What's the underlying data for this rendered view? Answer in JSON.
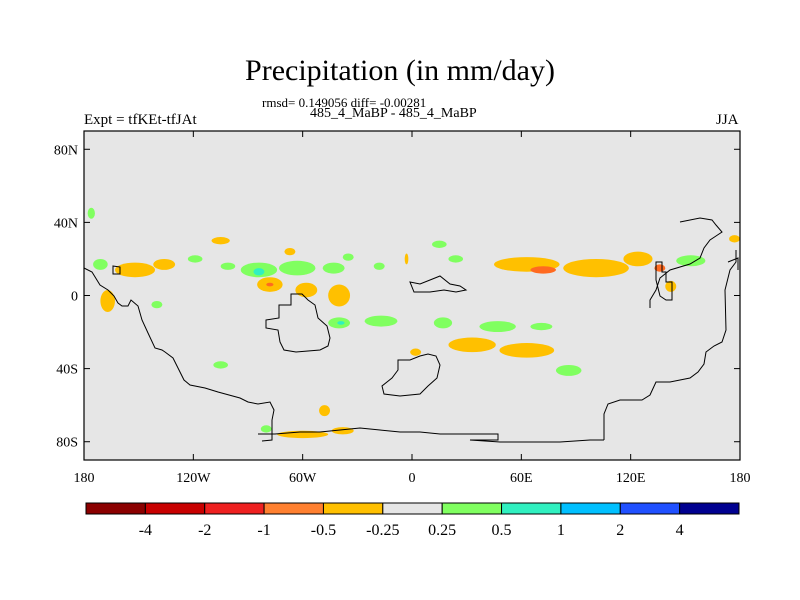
{
  "title": "Precipitation (in mm/day)",
  "stats_line": "rmsd= 0.149056 diff= -0.00281",
  "subtitle": "485_4_MaBP - 485_4_MaBP",
  "experiment_label": "Expt = tfKEt-tfJAt",
  "season": "JJA",
  "map": {
    "projection": "cylindrical-equidistant",
    "lon_range": [
      -180,
      180
    ],
    "lat_range": [
      -90,
      90
    ],
    "background_color": "#e6e6e6",
    "lat_ticks": [
      {
        "value": 80,
        "label": "80N"
      },
      {
        "value": 40,
        "label": "40N"
      },
      {
        "value": 0,
        "label": "0"
      },
      {
        "value": -40,
        "label": "40S"
      },
      {
        "value": -80,
        "label": "80S"
      }
    ],
    "lon_ticks": [
      {
        "value": -180,
        "label": "180"
      },
      {
        "value": -120,
        "label": "120W"
      },
      {
        "value": -60,
        "label": "60W"
      },
      {
        "value": 0,
        "label": "0"
      },
      {
        "value": 60,
        "label": "60E"
      },
      {
        "value": 120,
        "label": "120E"
      },
      {
        "value": 180,
        "label": "180"
      }
    ],
    "anomaly_regions": [
      {
        "lon": -152,
        "lat": 14,
        "level": "orange",
        "rx": 11,
        "ry": 4
      },
      {
        "lon": -136,
        "lat": 17,
        "level": "orange",
        "rx": 6,
        "ry": 3
      },
      {
        "lon": -105,
        "lat": 30,
        "level": "orange",
        "rx": 5,
        "ry": 2
      },
      {
        "lon": -67,
        "lat": 24,
        "level": "orange",
        "rx": 3,
        "ry": 2
      },
      {
        "lon": -176,
        "lat": 45,
        "level": "green",
        "rx": 2,
        "ry": 3
      },
      {
        "lon": -171,
        "lat": 17,
        "level": "green",
        "rx": 4,
        "ry": 3
      },
      {
        "lon": -119,
        "lat": 20,
        "level": "green",
        "rx": 4,
        "ry": 2
      },
      {
        "lon": -101,
        "lat": 16,
        "level": "green",
        "rx": 4,
        "ry": 2
      },
      {
        "lon": -84,
        "lat": 14,
        "level": "green",
        "rx": 10,
        "ry": 4
      },
      {
        "lon": -84,
        "lat": 13,
        "level": "cyan",
        "rx": 3,
        "ry": 2
      },
      {
        "lon": -63,
        "lat": 15,
        "level": "green",
        "rx": 10,
        "ry": 4
      },
      {
        "lon": -43,
        "lat": 15,
        "level": "green",
        "rx": 6,
        "ry": 3
      },
      {
        "lon": -35,
        "lat": 21,
        "level": "green",
        "rx": 3,
        "ry": 2
      },
      {
        "lon": -18,
        "lat": 16,
        "level": "green",
        "rx": 3,
        "ry": 2
      },
      {
        "lon": -3,
        "lat": 20,
        "level": "orange",
        "rx": 1,
        "ry": 3
      },
      {
        "lon": 15,
        "lat": 28,
        "level": "green",
        "rx": 4,
        "ry": 2
      },
      {
        "lon": 24,
        "lat": 20,
        "level": "green",
        "rx": 4,
        "ry": 2
      },
      {
        "lon": 63,
        "lat": 17,
        "level": "orange",
        "rx": 18,
        "ry": 4
      },
      {
        "lon": 72,
        "lat": 14,
        "level": "red-orange",
        "rx": 7,
        "ry": 2
      },
      {
        "lon": 101,
        "lat": 15,
        "level": "orange",
        "rx": 18,
        "ry": 5
      },
      {
        "lon": 136,
        "lat": 15,
        "level": "red-orange",
        "rx": 3,
        "ry": 2
      },
      {
        "lon": 153,
        "lat": 19,
        "level": "green",
        "rx": 8,
        "ry": 3
      },
      {
        "lon": 177,
        "lat": 31,
        "level": "orange",
        "rx": 3,
        "ry": 2
      },
      {
        "lon": 124,
        "lat": 20,
        "level": "orange",
        "rx": 8,
        "ry": 4
      },
      {
        "lon": 142,
        "lat": 5,
        "level": "orange",
        "rx": 3,
        "ry": 3
      },
      {
        "lon": -167,
        "lat": -3,
        "level": "orange",
        "rx": 4,
        "ry": 6
      },
      {
        "lon": -140,
        "lat": -5,
        "level": "green",
        "rx": 3,
        "ry": 2
      },
      {
        "lon": -78,
        "lat": 6,
        "level": "orange",
        "rx": 7,
        "ry": 4
      },
      {
        "lon": -78,
        "lat": 6,
        "level": "red-orange",
        "rx": 2,
        "ry": 1
      },
      {
        "lon": -58,
        "lat": 3,
        "level": "orange",
        "rx": 6,
        "ry": 4
      },
      {
        "lon": -40,
        "lat": 0,
        "level": "orange",
        "rx": 6,
        "ry": 6
      },
      {
        "lon": -40,
        "lat": -15,
        "level": "green",
        "rx": 6,
        "ry": 3
      },
      {
        "lon": -39,
        "lat": -15,
        "level": "cyan",
        "rx": 2,
        "ry": 1
      },
      {
        "lon": -17,
        "lat": -14,
        "level": "green",
        "rx": 9,
        "ry": 3
      },
      {
        "lon": 17,
        "lat": -15,
        "level": "green",
        "rx": 5,
        "ry": 3
      },
      {
        "lon": 47,
        "lat": -17,
        "level": "green",
        "rx": 10,
        "ry": 3
      },
      {
        "lon": 71,
        "lat": -17,
        "level": "green",
        "rx": 6,
        "ry": 2
      },
      {
        "lon": 33,
        "lat": -27,
        "level": "orange",
        "rx": 13,
        "ry": 4
      },
      {
        "lon": 63,
        "lat": -30,
        "level": "orange",
        "rx": 15,
        "ry": 4
      },
      {
        "lon": 2,
        "lat": -31,
        "level": "orange",
        "rx": 3,
        "ry": 2
      },
      {
        "lon": 86,
        "lat": -41,
        "level": "green",
        "rx": 7,
        "ry": 3
      },
      {
        "lon": -105,
        "lat": -38,
        "level": "green",
        "rx": 4,
        "ry": 2
      },
      {
        "lon": -48,
        "lat": -63,
        "level": "orange",
        "rx": 3,
        "ry": 3
      },
      {
        "lon": -80,
        "lat": -73,
        "level": "green",
        "rx": 3,
        "ry": 2
      },
      {
        "lon": -60,
        "lat": -76,
        "level": "orange",
        "rx": 14,
        "ry": 2
      },
      {
        "lon": -38,
        "lat": -74,
        "level": "orange",
        "rx": 6,
        "ry": 2
      }
    ]
  },
  "colorbar": {
    "colors": [
      "#8b0000",
      "#c80000",
      "#ee2020",
      "#ff8030",
      "#ffc000",
      "#e6e6e6",
      "#80ff60",
      "#30f0c0",
      "#00c0ff",
      "#2050ff",
      "#000090"
    ],
    "labels": [
      "-4",
      "-2",
      "-1",
      "-0.5",
      "-0.25",
      "0.25",
      "0.5",
      "1",
      "2",
      "4"
    ]
  },
  "level_colors": {
    "orange": "#ffc000",
    "red-orange": "#ff6a20",
    "green": "#80ff60",
    "cyan": "#30f0c0"
  }
}
